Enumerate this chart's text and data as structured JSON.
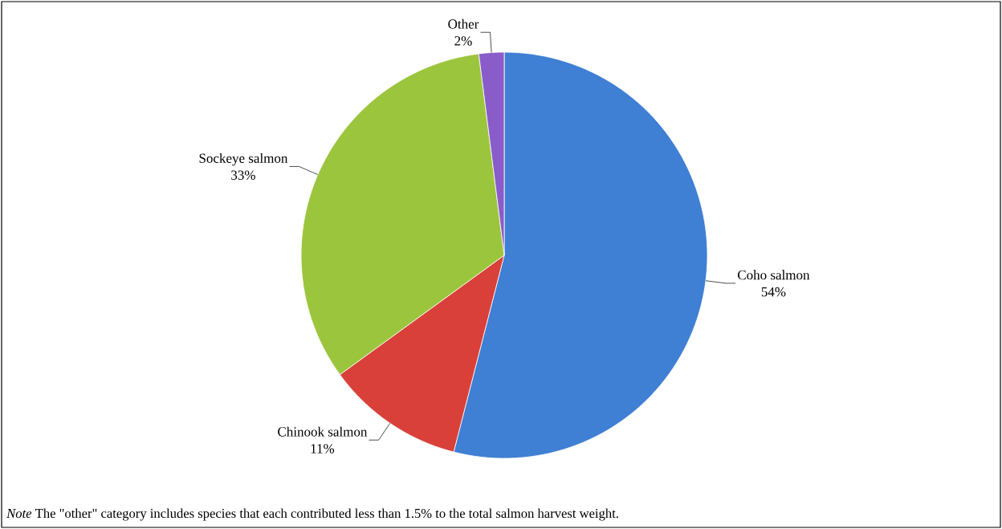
{
  "chart_data": {
    "type": "pie",
    "categories": [
      "Coho salmon",
      "Chinook salmon",
      "Sockeye salmon",
      "Other"
    ],
    "values": [
      54,
      11,
      33,
      2
    ],
    "value_labels": [
      "54%",
      "11%",
      "33%",
      "2%"
    ],
    "colors": [
      "#3f7fd4",
      "#d9403a",
      "#9bc53d",
      "#8a5cc9"
    ],
    "annotations": [
      "*Note* The \"other\" category includes species that each contributed less than 1.5% to the total salmon harvest weight."
    ]
  }
}
